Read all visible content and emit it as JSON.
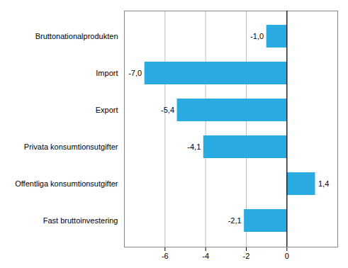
{
  "chart_data": {
    "type": "bar",
    "orientation": "horizontal",
    "categories": [
      "Bruttonationalprodukten",
      "Import",
      "Export",
      "Privata konsumtionsutgifter",
      "Offentliga konsumtionsutgifter",
      "Fast bruttoinvestering"
    ],
    "values": [
      -1.0,
      -7.0,
      -5.4,
      -4.1,
      1.4,
      -2.1
    ],
    "value_labels": [
      "-1,0",
      "-7,0",
      "-5,4",
      "-4,1",
      "1,4",
      "-2,1"
    ],
    "color": "#29ABE2",
    "xlim": [
      -8.0,
      2.5
    ],
    "xticks": [
      -6,
      -4,
      -2,
      0
    ],
    "grid": true,
    "data_labels": true
  }
}
